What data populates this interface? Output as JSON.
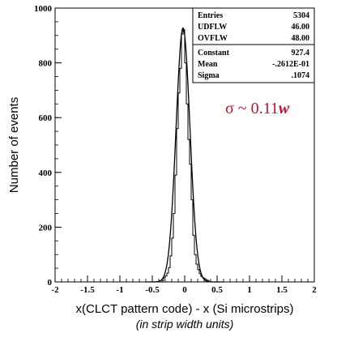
{
  "chart_data": {
    "type": "histogram",
    "xlabel": "x(CLCT pattern code) - x (Si microstrips)",
    "xlabel_sub": "(in strip width units)",
    "ylabel": "Number of events",
    "xlim": [
      -2,
      2
    ],
    "ylim": [
      0,
      1000
    ],
    "x_ticks": [
      "-2",
      "-1.5",
      "-1",
      "-0.5",
      "0",
      "0.5",
      "1",
      "1.5",
      "2"
    ],
    "y_ticks": [
      "0",
      "200",
      "400",
      "600",
      "800",
      "1000"
    ],
    "bin_width": 0.025,
    "bin_centers": [
      -0.3375,
      -0.3125,
      -0.2875,
      -0.2625,
      -0.2375,
      -0.2125,
      -0.1875,
      -0.1625,
      -0.1375,
      -0.1125,
      -0.0875,
      -0.0625,
      -0.0375,
      -0.0125,
      0.0125,
      0.0375,
      0.0625,
      0.0875,
      0.1125,
      0.1375,
      0.1625,
      0.1875,
      0.2125,
      0.2375,
      0.2625,
      0.2875,
      0.3125,
      0.3375,
      0.3625
    ],
    "counts": [
      5,
      15,
      22,
      32,
      52,
      95,
      160,
      250,
      390,
      560,
      690,
      780,
      905,
      920,
      800,
      650,
      520,
      430,
      300,
      170,
      100,
      65,
      45,
      30,
      20,
      15,
      12,
      8,
      5
    ],
    "fit": {
      "constant": 927.4,
      "mean": -0.02612,
      "sigma": 0.1074
    },
    "stats_box": {
      "rows": [
        {
          "label": "Entries",
          "value": "5304"
        },
        {
          "label": "UDFLW",
          "value": "46.00"
        },
        {
          "label": "OVFLW",
          "value": "48.00"
        },
        {
          "label": "Constant",
          "value": "927.4"
        },
        {
          "label": "Mean",
          "value": "-.2612E-01"
        },
        {
          "label": "Sigma",
          "value": ".1074"
        }
      ]
    },
    "annotation": {
      "prefix": "σ ~ 0.11",
      "suffix": "w",
      "color": "#c8102e"
    }
  }
}
